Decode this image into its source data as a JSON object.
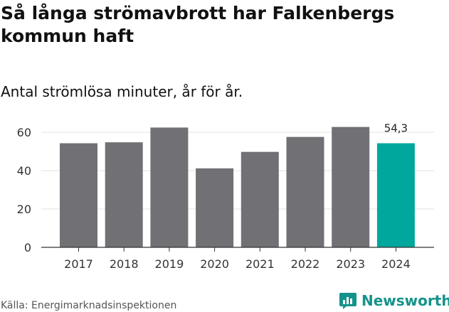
{
  "header": {
    "title": "Så långa strömavbrott har Falkenbergs kommun haft",
    "subtitle": "Antal strömlösa minuter, år för år."
  },
  "footer": {
    "source": "Källa: Energimarknadsinspektionen",
    "brand": "Newsworthy",
    "brand_icon": "newsworthy-logo-icon"
  },
  "colors": {
    "bar": "#717074",
    "highlight": "#00a79d",
    "grid": "#e2e2e2",
    "brand": "#14938b"
  },
  "chart_data": {
    "type": "bar",
    "title": "Så långa strömavbrott har Falkenbergs kommun haft",
    "subtitle": "Antal strömlösa minuter, år för år.",
    "xlabel": "",
    "ylabel": "",
    "categories": [
      "2017",
      "2018",
      "2019",
      "2020",
      "2021",
      "2022",
      "2023",
      "2024"
    ],
    "values": [
      54.3,
      54.8,
      62.5,
      41.2,
      49.8,
      57.6,
      62.8,
      54.3
    ],
    "highlight_index": 7,
    "data_labels": [
      {
        "index": 7,
        "text": "54,3"
      }
    ],
    "yticks": [
      0,
      20,
      40,
      60
    ],
    "ylim": [
      0,
      66
    ],
    "grid": true,
    "legend": "none"
  }
}
